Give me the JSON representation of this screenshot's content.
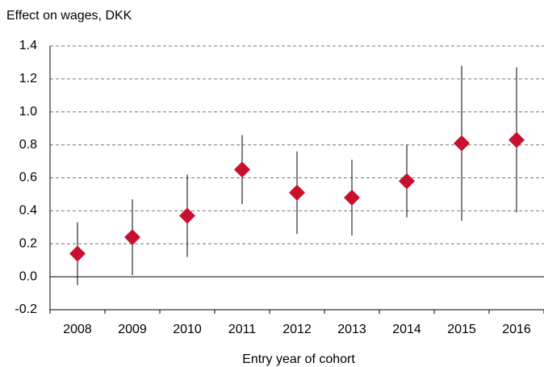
{
  "chart_data": {
    "type": "errorbar",
    "y_label": "Effect on wages, DKK",
    "x_label": "Entry year of cohort",
    "categories": [
      "2008",
      "2009",
      "2010",
      "2011",
      "2012",
      "2013",
      "2014",
      "2015",
      "2016"
    ],
    "values": [
      0.14,
      0.24,
      0.37,
      0.65,
      0.51,
      0.48,
      0.58,
      0.81,
      0.83
    ],
    "errors": [
      0.19,
      0.23,
      0.25,
      0.21,
      0.25,
      0.23,
      0.22,
      0.47,
      0.44
    ],
    "color": "#c8102e",
    "ylim": [
      -0.2,
      1.4
    ],
    "yticks": [
      {
        "value": -0.2,
        "label": "-0.2"
      },
      {
        "value": 0,
        "label": "0.0"
      },
      0.2,
      0.4,
      0.6,
      0.8,
      {
        "value": 1,
        "label": "1.0"
      },
      1.2,
      1.4
    ],
    "grid": true
  }
}
